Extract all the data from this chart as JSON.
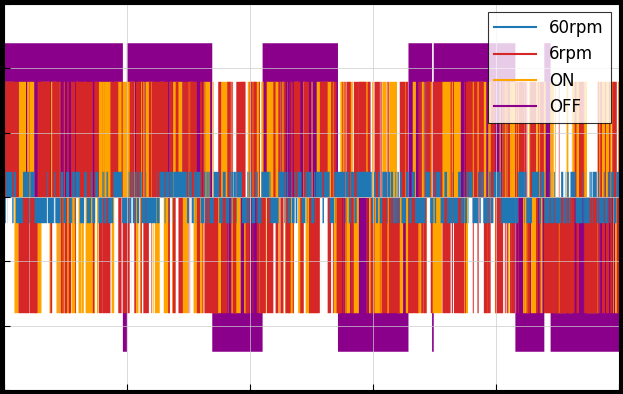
{
  "legend_labels": [
    "60rpm",
    "6rpm",
    "ON",
    "OFF"
  ],
  "line_colors": [
    "#1f77b4",
    "#d62728",
    "#ffa500",
    "#8b008b"
  ],
  "xlim": [
    0,
    1
  ],
  "ylim": [
    -1.5,
    1.5
  ],
  "n_points": 10000,
  "seed": 42,
  "background_color": "#ffffff",
  "outer_background": "#000000",
  "legend_fontsize": 12,
  "grid_color": "#cccccc"
}
